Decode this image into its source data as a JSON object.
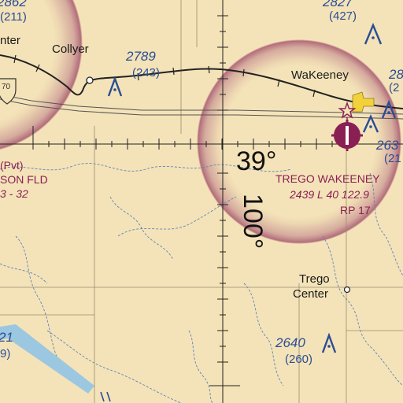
{
  "map": {
    "towns": {
      "wakeeney": "WaKeeney",
      "collyer": "Collyer",
      "trego_center_1": "Trego",
      "trego_center_2": "Center",
      "center_partial": "nter"
    },
    "elevations": {
      "e2789_top": "2789",
      "e2789_bottom": "(243)",
      "e2640_top": "2640",
      "e2640_bottom": "(260)",
      "e2827_top": "2827",
      "e2827_bottom": "(427)",
      "e2862_top": "2862",
      "e2862_bottom": "(211)",
      "e263_top": "263",
      "e263_bottom": "(21",
      "e28_top": "28",
      "e28_bottom": "(2",
      "e21_top": "21",
      "e21_bottom": "9)"
    },
    "airports": {
      "trego_name": "TREGO WAKEENEY",
      "trego_line2": "2439  L 40  122.9",
      "trego_line3": "RP 17",
      "west_pvt": "(Pvt)",
      "west_name": "SON FLD",
      "west_line2": "3 - 32"
    },
    "grid": {
      "latitude_label": "39°",
      "longitude_label": "100°"
    },
    "route": {
      "highway": "70"
    },
    "colors": {
      "background": "#f4e3b8",
      "class_e_ring": "#b0687e",
      "airport_magenta": "#8a1f54",
      "terrain_blue": "#2a4d95",
      "water": "#9cc7e0"
    }
  }
}
